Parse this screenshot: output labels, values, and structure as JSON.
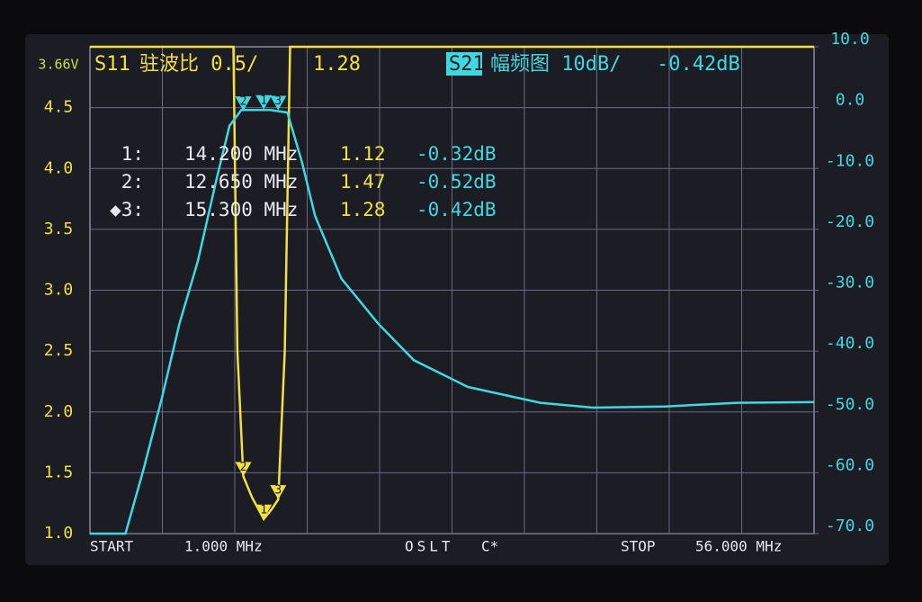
{
  "status": {
    "battery": "3.66V",
    "s11_label": "S11",
    "s11_format": "驻波比 0.5/",
    "s11_value": "1.28",
    "s21_label": "S21",
    "s21_format": "幅频图 10dB/",
    "s21_value": "-0.42dB"
  },
  "marker_table": [
    [
      "1:",
      "14.200 MHz",
      "1.12",
      "-0.32dB"
    ],
    [
      "2:",
      "12.650 MHz",
      "1.47",
      "-0.52dB"
    ],
    [
      "◆3:",
      "15.300 MHz",
      "1.28",
      "-0.42dB"
    ]
  ],
  "footer": {
    "start": "START",
    "start_freq": "1.000 MHz",
    "cal": "OSLT",
    "cal_flag": "C*",
    "stop": "STOP",
    "stop_freq": "56.000 MHz"
  },
  "chart_data": {
    "type": "line",
    "xlim": [
      1,
      56
    ],
    "ylim": [
      1,
      5
    ],
    "y2lim": [
      -70,
      10
    ],
    "yticks": [
      {
        "value": 1,
        "label": "1.0"
      },
      1.5,
      {
        "value": 2,
        "label": "2.0"
      },
      2.5,
      {
        "value": 3,
        "label": "3.0"
      },
      3.5,
      {
        "value": 4,
        "label": "4.0"
      },
      4.5
    ],
    "y2ticks": [
      {
        "value": -70,
        "label": "-70.0"
      },
      {
        "value": -60,
        "label": "-60.0"
      },
      {
        "value": -50,
        "label": "-50.0"
      },
      {
        "value": -40,
        "label": "-40.0"
      },
      {
        "value": -30,
        "label": "-30.0"
      },
      {
        "value": -20,
        "label": "-20.0"
      },
      {
        "value": -10,
        "label": "-10.0"
      },
      {
        "value": 0,
        "label": "0.0"
      },
      {
        "value": 10,
        "label": "10.0"
      }
    ],
    "grid": true,
    "series": [
      {
        "name": "S11",
        "color": "#f0e040",
        "x": [
          1,
          11.9,
          12.2,
          12.65,
          13.3,
          14.2,
          14.8,
          15.3,
          15.8,
          16.2,
          56
        ],
        "values": [
          5,
          5,
          2.5,
          1.47,
          1.3,
          1.12,
          1.2,
          1.28,
          2.5,
          5,
          5
        ]
      },
      {
        "name": "S21",
        "color": "#40d8e0",
        "axis": "y2",
        "x": [
          1,
          3.7,
          5.1,
          6.5,
          7.8,
          9.2,
          10.6,
          11.6,
          12.5,
          14.7,
          16.0,
          17.1,
          18.1,
          20.1,
          22.9,
          25.6,
          29.7,
          35.2,
          39.2,
          44.7,
          50.2,
          56
        ],
        "values": [
          -70,
          -70,
          -59.2,
          -47.4,
          -35.5,
          -25.2,
          -11.9,
          -3.0,
          -0.4,
          -0.4,
          -0.8,
          -8.9,
          -17.8,
          -28.1,
          -35.5,
          -41.5,
          -45.9,
          -48.5,
          -49.3,
          -49.1,
          -48.5,
          -48.4
        ]
      }
    ],
    "markers": [
      {
        "name": "1",
        "x": 14.2,
        "y": 1.12,
        "y2": -0.32
      },
      {
        "name": "2",
        "x": 12.65,
        "y": 1.47,
        "y2": -0.52
      },
      {
        "name": "3",
        "x": 15.3,
        "y": 1.28,
        "y2": -0.42
      }
    ]
  }
}
